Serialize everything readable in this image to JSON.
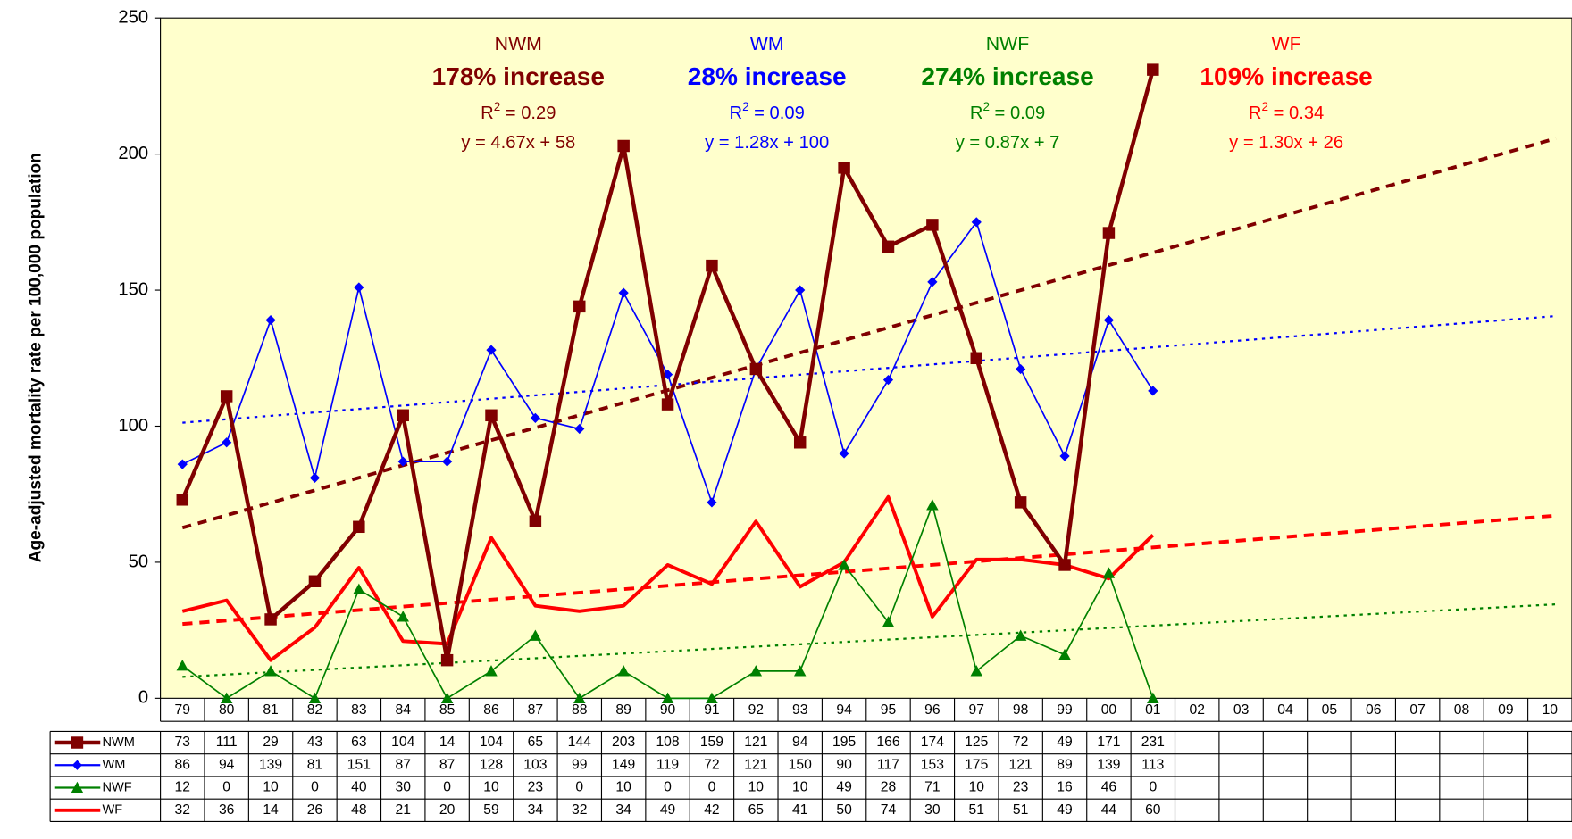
{
  "chart_data": {
    "type": "line",
    "y_label": "Age-adjusted mortality rate per 100,000 population",
    "categories": [
      "79",
      "80",
      "81",
      "82",
      "83",
      "84",
      "85",
      "86",
      "87",
      "88",
      "89",
      "90",
      "91",
      "92",
      "93",
      "94",
      "95",
      "96",
      "97",
      "98",
      "99",
      "00",
      "01",
      "02",
      "03",
      "04",
      "05",
      "06",
      "07",
      "08",
      "09",
      "10"
    ],
    "ylim": [
      0,
      250
    ],
    "yticks": [
      0,
      50,
      100,
      150,
      200,
      250
    ],
    "series": [
      {
        "name": "NWM",
        "color": "#800000",
        "marker": "square",
        "values": [
          73,
          111,
          29,
          43,
          63,
          104,
          14,
          104,
          65,
          144,
          203,
          108,
          159,
          121,
          94,
          195,
          166,
          174,
          125,
          72,
          49,
          171,
          231,
          null,
          null,
          null,
          null,
          null,
          null,
          null,
          null,
          null
        ],
        "trend": {
          "slope": 4.67,
          "intercept": 58
        }
      },
      {
        "name": "WM",
        "color": "#0000ff",
        "marker": "diamond",
        "values": [
          86,
          94,
          139,
          81,
          151,
          87,
          87,
          128,
          103,
          99,
          149,
          119,
          72,
          121,
          150,
          90,
          117,
          153,
          175,
          121,
          89,
          139,
          113,
          null,
          null,
          null,
          null,
          null,
          null,
          null,
          null,
          null
        ],
        "trend": {
          "slope": 1.28,
          "intercept": 100
        }
      },
      {
        "name": "NWF",
        "color": "#008000",
        "marker": "triangle",
        "values": [
          12,
          0,
          10,
          0,
          40,
          30,
          0,
          10,
          23,
          0,
          10,
          0,
          0,
          10,
          10,
          49,
          28,
          71,
          10,
          23,
          16,
          46,
          0,
          null,
          null,
          null,
          null,
          null,
          null,
          null,
          null,
          null
        ],
        "trend": {
          "slope": 0.87,
          "intercept": 7
        }
      },
      {
        "name": "WF",
        "color": "#ff0000",
        "marker": "none",
        "values": [
          32,
          36,
          14,
          26,
          48,
          21,
          20,
          59,
          34,
          32,
          34,
          49,
          42,
          65,
          41,
          50,
          74,
          30,
          51,
          51,
          49,
          44,
          60,
          null,
          null,
          null,
          null,
          null,
          null,
          null,
          null,
          null
        ],
        "trend": {
          "slope": 1.3,
          "intercept": 26
        }
      }
    ],
    "annotations": [
      {
        "group": "NWM",
        "increase": "178% increase",
        "r_symbol": "R",
        "r_sup": "2",
        "r_value": " = 0.29",
        "equation": "y = 4.67x + 58"
      },
      {
        "group": "WM",
        "increase": "28% increase",
        "r_symbol": "R",
        "r_sup": "2",
        "r_value": " = 0.09",
        "equation": "y = 1.28x + 100"
      },
      {
        "group": "NWF",
        "increase": "274% increase",
        "r_symbol": "R",
        "r_sup": "2",
        "r_value": " = 0.09",
        "equation": "y = 0.87x + 7"
      },
      {
        "group": "WF",
        "increase": "109% increase",
        "r_symbol": "R",
        "r_sup": "2",
        "r_value": " = 0.34",
        "equation": "y = 1.30x + 26"
      }
    ]
  }
}
